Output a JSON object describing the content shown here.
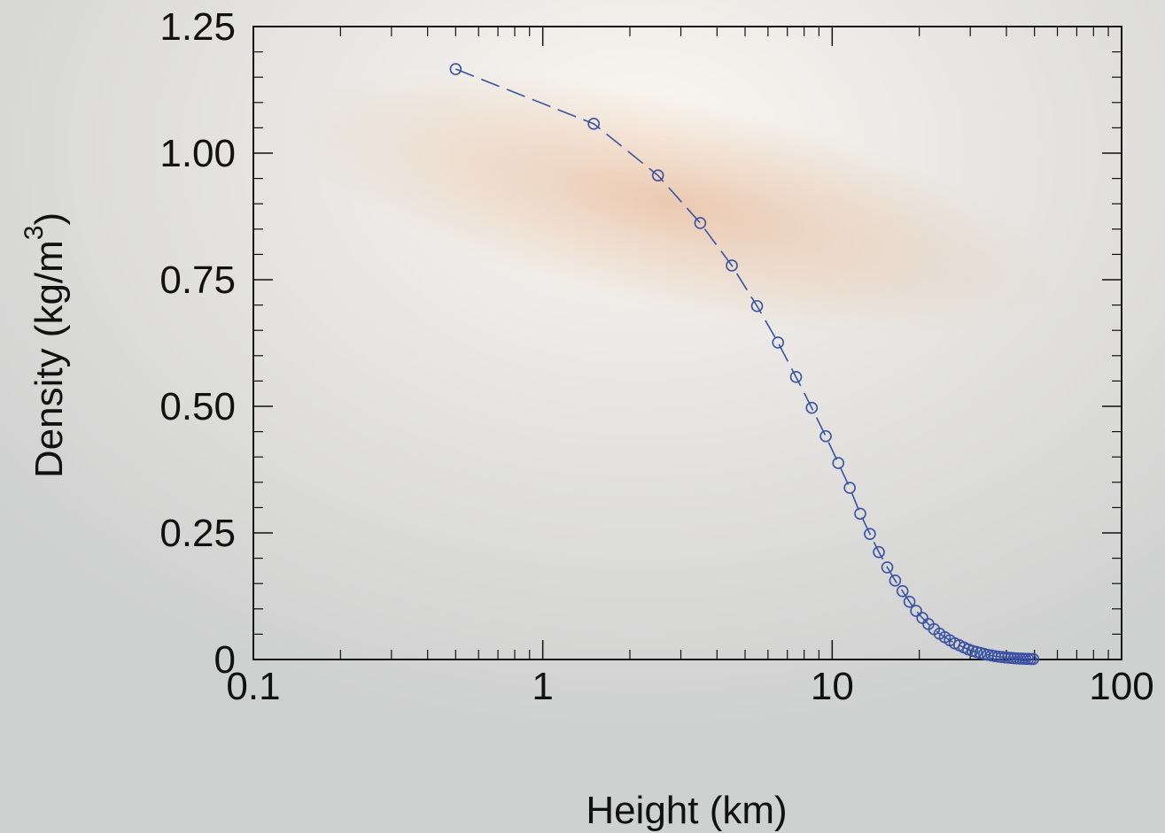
{
  "chart_data": {
    "type": "line",
    "xlabel": "Height (km)",
    "ylabel_parts": [
      "Density (kg/m",
      "3",
      ")"
    ],
    "x": [
      0.5,
      1.5,
      2.5,
      3.5,
      4.5,
      5.5,
      6.5,
      7.5,
      8.5,
      9.5,
      10.5,
      11.5,
      12.5,
      13.5,
      14.5,
      15.5,
      16.5,
      17.5,
      18.5,
      19.5,
      20.5,
      21.5,
      22.5,
      23.5,
      24.5,
      25.5,
      26.5,
      27.5,
      28.5,
      29.5,
      30.5,
      31.5,
      32.5,
      33.5,
      34.5,
      35.5,
      36.5,
      37.5,
      38.5,
      39.5,
      40.5,
      41.5,
      42.5,
      43.5,
      44.5,
      45.5,
      46.5,
      47.5,
      48.5,
      49.5
    ],
    "series": [
      {
        "color": "#3a52a4",
        "values": [
          1.166,
          1.058,
          0.956,
          0.862,
          0.778,
          0.698,
          0.626,
          0.558,
          0.497,
          0.441,
          0.388,
          0.339,
          0.288,
          0.248,
          0.212,
          0.182,
          0.156,
          0.135,
          0.114,
          0.096,
          0.082,
          0.07,
          0.06,
          0.051,
          0.044,
          0.038,
          0.032,
          0.028,
          0.024,
          0.02,
          0.017,
          0.015,
          0.013,
          0.011,
          0.0092,
          0.0079,
          0.0067,
          0.0057,
          0.0049,
          0.0042,
          0.0036,
          0.0031,
          0.0026,
          0.0022,
          0.0019,
          0.0016,
          0.0014,
          0.0012,
          0.001,
          0.0009
        ]
      }
    ],
    "xscale": "log",
    "xlim": [
      0.1,
      100
    ],
    "xticks": [
      0.1,
      1,
      10,
      100
    ],
    "ylim": [
      0,
      1.25
    ],
    "yticks": [
      0,
      {
        "value": 0.25,
        "label": "0.25"
      },
      {
        "value": 0.5,
        "label": "0.50"
      },
      {
        "value": 0.75,
        "label": "0.75"
      },
      {
        "value": 1,
        "label": "1.00"
      },
      {
        "value": 1.25,
        "label": "1.25"
      }
    ],
    "line_style": "dashed",
    "marker": "open-circle"
  }
}
